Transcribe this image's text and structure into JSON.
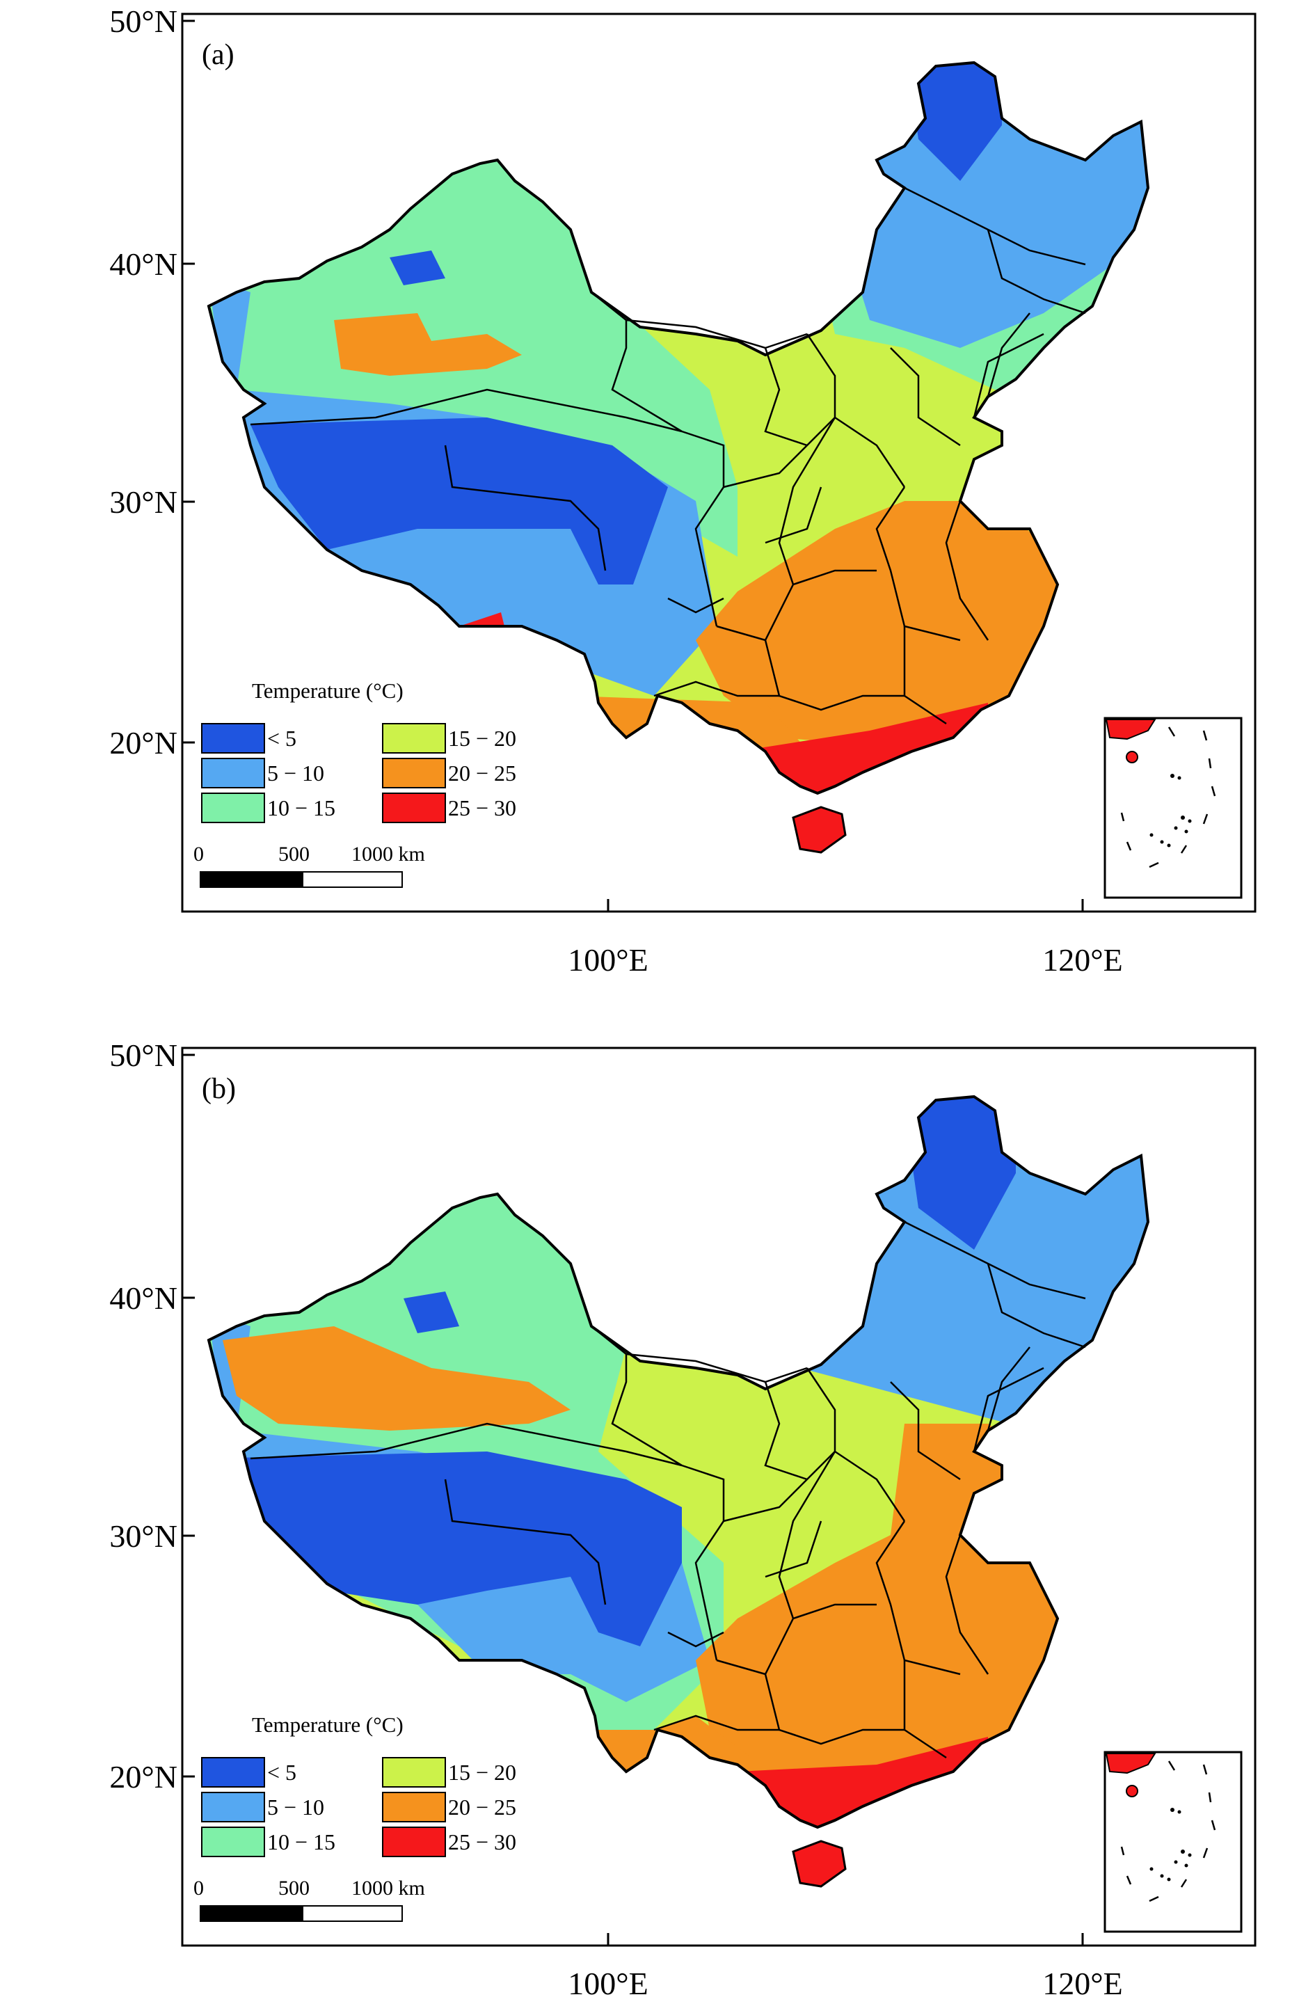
{
  "panels": [
    {
      "label": "(a)",
      "y_ticks": [
        "50°N",
        "40°N",
        "30°N",
        "20°N"
      ],
      "x_ticks": [
        "100°E",
        "120°E"
      ]
    },
    {
      "label": "(b)",
      "y_ticks": [
        "50°N",
        "40°N",
        "30°N",
        "20°N"
      ],
      "x_ticks": [
        "100°E",
        "120°E"
      ]
    }
  ],
  "legend": {
    "title": "Temperature (°C)",
    "classes": [
      {
        "label": "< 5",
        "color": "#1f55e0"
      },
      {
        "label": "5 − 10",
        "color": "#55a8f2"
      },
      {
        "label": "10 − 15",
        "color": "#7ff0a8"
      },
      {
        "label": "15 − 20",
        "color": "#ccf24a"
      },
      {
        "label": "20 − 25",
        "color": "#f5921e"
      },
      {
        "label": "25 − 30",
        "color": "#f5181b"
      }
    ]
  },
  "scale_bar": {
    "labels": [
      "0",
      "500",
      "1000 km"
    ]
  },
  "colors": {
    "outline": "#000000",
    "frame": "#000000"
  }
}
